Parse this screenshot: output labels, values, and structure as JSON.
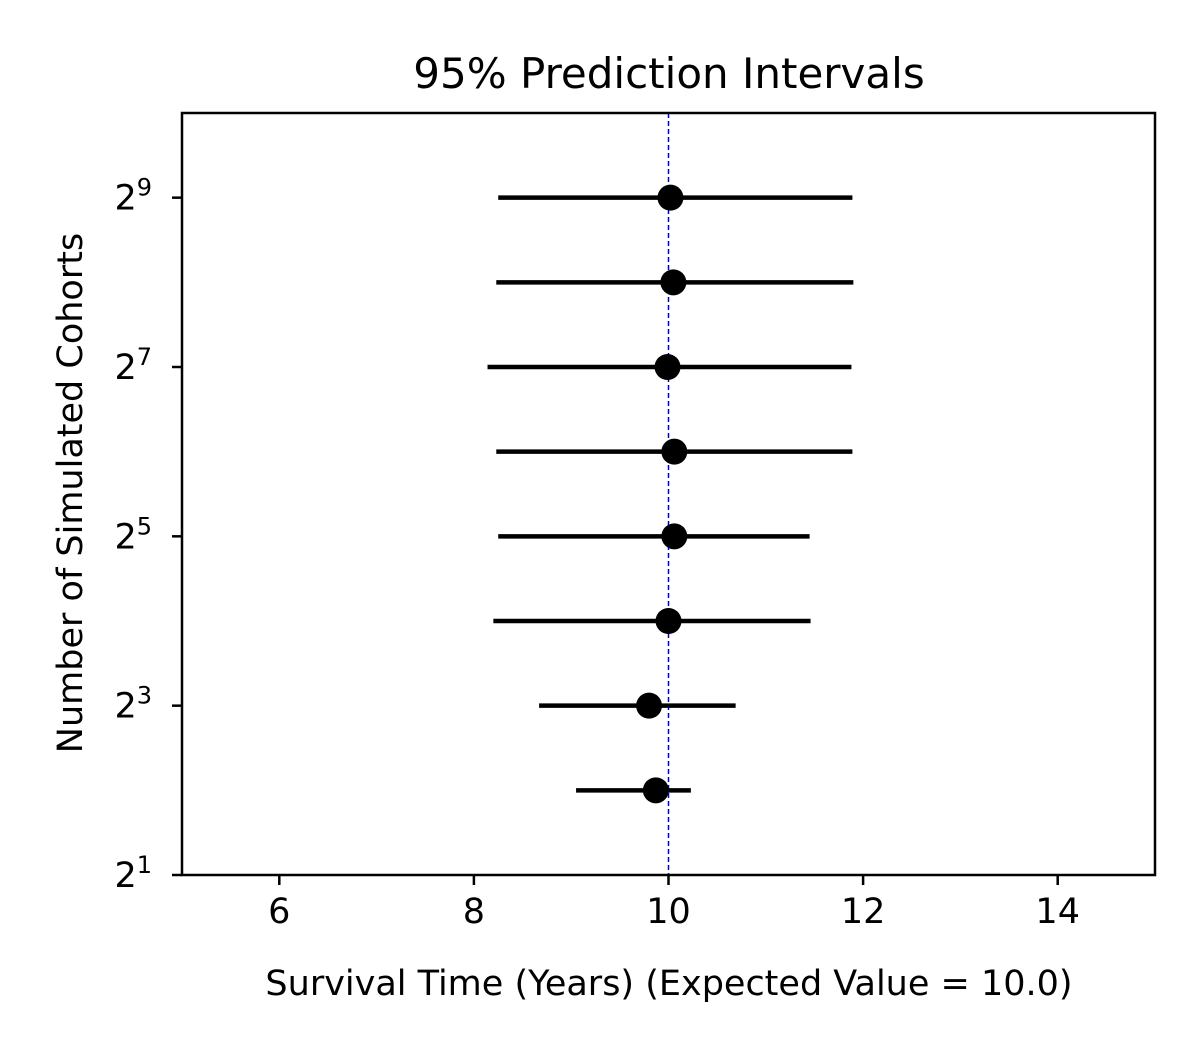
{
  "chart_data": {
    "type": "scatter",
    "title": "95% Prediction Intervals",
    "xlabel": "Survival Time (Years) (Expected Value = 10.0)",
    "ylabel": "Number of Simulated Cohorts",
    "xlim": [
      5,
      15
    ],
    "ylim_exponent": [
      1,
      10
    ],
    "y_scale": "log2",
    "x_ticks": [
      {
        "value": 6,
        "label": "6"
      },
      {
        "value": 8,
        "label": "8"
      },
      {
        "value": 10,
        "label": "10"
      },
      {
        "value": 12,
        "label": "12"
      },
      {
        "value": 14,
        "label": "14"
      }
    ],
    "y_ticks": [
      {
        "exponent": 1,
        "base": "2",
        "power": "1"
      },
      {
        "exponent": 3,
        "base": "2",
        "power": "3"
      },
      {
        "exponent": 5,
        "base": "2",
        "power": "5"
      },
      {
        "exponent": 7,
        "base": "2",
        "power": "7"
      },
      {
        "exponent": 9,
        "base": "2",
        "power": "9"
      }
    ],
    "reference_line": {
      "x": 10.0,
      "color": "#0000cc",
      "style": "dashed"
    },
    "point_color": "#000000",
    "intervals": [
      {
        "cohorts": 4,
        "mean": 9.87,
        "lower": 9.05,
        "upper": 10.23
      },
      {
        "cohorts": 8,
        "mean": 9.8,
        "lower": 8.67,
        "upper": 10.69
      },
      {
        "cohorts": 16,
        "mean": 10.0,
        "lower": 8.2,
        "upper": 11.46
      },
      {
        "cohorts": 32,
        "mean": 10.06,
        "lower": 8.25,
        "upper": 11.45
      },
      {
        "cohorts": 64,
        "mean": 10.06,
        "lower": 8.23,
        "upper": 11.89
      },
      {
        "cohorts": 128,
        "mean": 9.99,
        "lower": 8.14,
        "upper": 11.88
      },
      {
        "cohorts": 256,
        "mean": 10.05,
        "lower": 8.23,
        "upper": 11.9
      },
      {
        "cohorts": 512,
        "mean": 10.02,
        "lower": 8.25,
        "upper": 11.89
      }
    ]
  }
}
